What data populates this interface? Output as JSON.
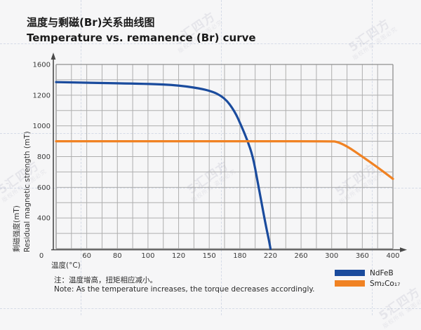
{
  "header": {
    "title_zh": "温度与剩磁(Br)关系曲线图",
    "title_en": "Temperature vs. remanence (Br) curve"
  },
  "watermark": {
    "brand": "5汇四方",
    "notice": "版权所有 盗图必究"
  },
  "chart_data": {
    "type": "line",
    "title": "温度与剩磁(Br)关系曲线图",
    "subtitle": "Temperature vs. remanence (Br) curve",
    "xlabel": "温度(°C)",
    "ylabel_zh": "剩磁强度(mT)",
    "ylabel_en": "Residual magnetic strength (mT)",
    "origin_label": "0",
    "x_ticks": [
      0,
      60,
      80,
      100,
      120,
      150,
      180,
      220,
      260,
      300,
      360,
      400
    ],
    "y_ticks": [
      1600,
      1200,
      1000,
      800,
      600,
      400,
      0
    ],
    "grid": true,
    "legend_position": "bottom-right",
    "series": [
      {
        "name": "NdFeB",
        "color": "#1a4b9d",
        "points": [
          [
            0,
            1370
          ],
          [
            60,
            1362
          ],
          [
            100,
            1348
          ],
          [
            120,
            1330
          ],
          [
            150,
            1268
          ],
          [
            165,
            1185
          ],
          [
            175,
            1095
          ],
          [
            182,
            1000
          ],
          [
            190,
            905
          ],
          [
            197,
            800
          ],
          [
            203,
            645
          ],
          [
            209,
            480
          ],
          [
            214,
            300
          ],
          [
            218,
            110
          ],
          [
            220,
            0
          ]
        ]
      },
      {
        "name": "Sm₂Co₁₇",
        "color": "#f08223",
        "points": [
          [
            0,
            900
          ],
          [
            100,
            900
          ],
          [
            200,
            900
          ],
          [
            300,
            900
          ],
          [
            310,
            897
          ],
          [
            330,
            868
          ],
          [
            360,
            800
          ],
          [
            380,
            730
          ],
          [
            400,
            655
          ]
        ]
      }
    ]
  },
  "legend": {
    "items": [
      {
        "label": "NdFeB",
        "color": "#1a4b9d"
      },
      {
        "label": "Sm₂Co₁₇",
        "color": "#f08223"
      }
    ]
  },
  "note": {
    "zh": "注：温度增高，扭矩相应减小。",
    "en": "Note: As the temperature increases, the torque decreases accordingly."
  }
}
